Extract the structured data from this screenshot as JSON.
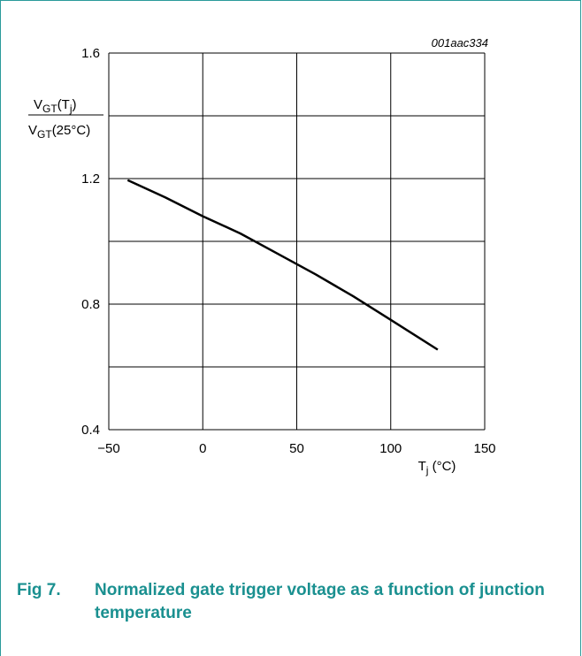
{
  "figure": {
    "code": "001aac334",
    "caption_number": "Fig 7.",
    "caption_text": "Normalized gate trigger voltage as a function of junction temperature"
  },
  "colors": {
    "frame": "#2a9a9a",
    "caption": "#1a9090",
    "grid": "#000000",
    "line": "#000000"
  },
  "chart_data": {
    "type": "line",
    "title": "",
    "xlabel": {
      "base": "T",
      "sub": "j",
      "suffix": " (°C)"
    },
    "ylabel": {
      "numerator": {
        "base": "V",
        "sub": "GT",
        "rest_open": "(T",
        "rest_sub": "j",
        "rest_close": ")"
      },
      "denominator": {
        "base": "V",
        "sub": "GT",
        "rest": "(25°C)"
      }
    },
    "xlim": [
      -50,
      150
    ],
    "ylim": [
      0.4,
      1.6
    ],
    "x_ticks": [
      -50,
      0,
      50,
      100,
      150
    ],
    "x_tick_labels": [
      "−50",
      "0",
      "50",
      "100",
      "150"
    ],
    "y_ticks": [
      0.4,
      0.8,
      1.2,
      1.6
    ],
    "y_tick_labels": [
      "0.4",
      "0.8",
      "1.2",
      "1.6"
    ],
    "y_gridlines": [
      0.4,
      0.6,
      0.8,
      1.0,
      1.2,
      1.4,
      1.6
    ],
    "grid": true,
    "series": [
      {
        "x": [
          -40,
          -20,
          0,
          20,
          40,
          60,
          80,
          100,
          125
        ],
        "y": [
          1.195,
          1.14,
          1.08,
          1.025,
          0.96,
          0.895,
          0.825,
          0.75,
          0.655
        ]
      }
    ]
  }
}
